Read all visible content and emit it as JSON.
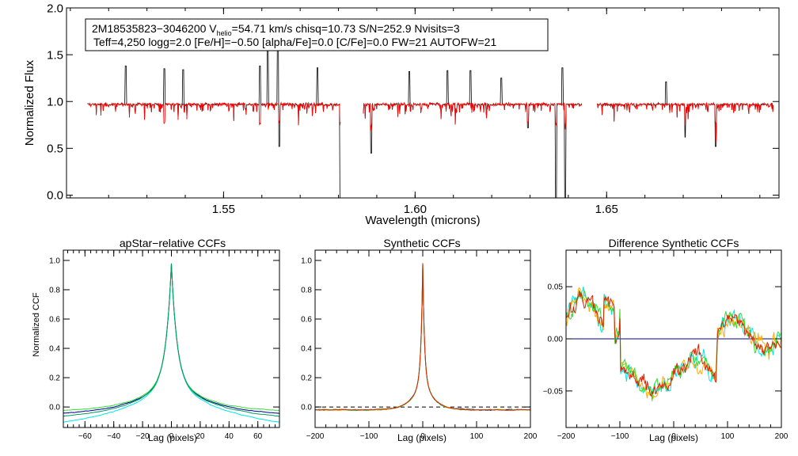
{
  "chart_data": [
    {
      "type": "line",
      "panel": "spectrum",
      "info_line1": "2M18535823−3046200  V",
      "info_sub": "helio",
      "info_line1_rest": "=54.71 km/s  chisq=10.73  S/N=252.9  Nvisits=3",
      "info_line2": "Teff=4,250 logg=2.0 [Fe/H]=−0.50 [alpha/Fe]=0.0 [C/Fe]=0.0 FW=21 AUTOFW=21",
      "xlabel": "Wavelength (microns)",
      "ylabel": "Normalized Flux",
      "xlim": [
        1.509,
        1.695
      ],
      "ylim": [
        -0.03,
        2.0
      ],
      "xticks": [
        {
          "v": 1.55,
          "label": "1.55"
        },
        {
          "v": 1.6,
          "label": "1.60"
        },
        {
          "v": 1.65,
          "label": "1.65"
        }
      ],
      "yticks": [
        {
          "v": 0.0,
          "label": "0.0"
        },
        {
          "v": 0.5,
          "label": "0.5"
        },
        {
          "v": 1.0,
          "label": "1.0"
        },
        {
          "v": 1.5,
          "label": "1.5"
        },
        {
          "v": 2.0,
          "label": "2.0"
        }
      ],
      "chips": [
        [
          1.5145,
          1.5805
        ],
        [
          1.5865,
          1.6435
        ],
        [
          1.6475,
          1.6935
        ]
      ],
      "series": [
        {
          "name": "observed",
          "color": "#000000"
        },
        {
          "name": "model",
          "color": "#ff0000"
        }
      ],
      "spikes": [
        {
          "x": 1.5245,
          "y": 1.38
        },
        {
          "x": 1.5345,
          "y": 1.35
        },
        {
          "x": 1.5395,
          "y": 1.34
        },
        {
          "x": 1.5595,
          "y": 1.38
        },
        {
          "x": 1.5615,
          "y": 1.55
        },
        {
          "x": 1.5642,
          "y": 1.72
        },
        {
          "x": 1.5745,
          "y": 1.36
        },
        {
          "x": 1.5985,
          "y": 1.32
        },
        {
          "x": 1.6085,
          "y": 1.33
        },
        {
          "x": 1.6145,
          "y": 1.33
        },
        {
          "x": 1.6225,
          "y": 1.25
        },
        {
          "x": 1.6385,
          "y": 1.36
        },
        {
          "x": 1.6655,
          "y": 1.21
        }
      ],
      "dips": [
        {
          "x": 1.5805,
          "y": -0.03
        },
        {
          "x": 1.6368,
          "y": -0.03
        },
        {
          "x": 1.6392,
          "y": -0.03
        },
        {
          "x": 1.5885,
          "y": 0.45
        },
        {
          "x": 1.5645,
          "y": 0.52
        },
        {
          "x": 1.5595,
          "y": 0.65
        },
        {
          "x": 1.5345,
          "y": 0.62
        },
        {
          "x": 1.6785,
          "y": 0.52
        },
        {
          "x": 1.6705,
          "y": 0.62
        },
        {
          "x": 1.6295,
          "y": 0.72
        }
      ]
    },
    {
      "type": "line",
      "panel": "ccf1",
      "title": "apStar−relative CCFs",
      "xlabel": "Lag (pixels)",
      "ylabel": "Normalized CCF",
      "xlim": [
        -75,
        75
      ],
      "ylim": [
        -0.14,
        1.07
      ],
      "xticks": [
        {
          "v": -60,
          "label": "−60"
        },
        {
          "v": -40,
          "label": "−40"
        },
        {
          "v": -20,
          "label": "−20"
        },
        {
          "v": 0,
          "label": "0"
        },
        {
          "v": 20,
          "label": "20"
        },
        {
          "v": 40,
          "label": "40"
        },
        {
          "v": 60,
          "label": "60"
        }
      ],
      "yticks": [
        {
          "v": 0.0,
          "label": "0.0"
        },
        {
          "v": 0.2,
          "label": "0.2"
        },
        {
          "v": 0.4,
          "label": "0.4"
        },
        {
          "v": 0.6,
          "label": "0.6"
        },
        {
          "v": 0.8,
          "label": "0.8"
        },
        {
          "v": 1.0,
          "label": "1.0"
        }
      ],
      "peak": 1.0,
      "series": [
        {
          "name": "visit 1",
          "color": "#00008b",
          "offset": -0.03
        },
        {
          "name": "visit 2",
          "color": "#00e5e5",
          "offset": -0.09
        },
        {
          "name": "visit 3",
          "color": "#33dd33",
          "offset": -0.01
        },
        {
          "name": "visit 4",
          "color": "#009966",
          "offset": -0.05
        }
      ]
    },
    {
      "type": "line",
      "panel": "ccf2",
      "title": "Synthetic CCFs",
      "xlabel": "Lag (pixels)",
      "xlim": [
        -200,
        200
      ],
      "ylim": [
        -0.14,
        1.07
      ],
      "xticks": [
        {
          "v": -200,
          "label": "−200"
        },
        {
          "v": -100,
          "label": "−100"
        },
        {
          "v": 0,
          "label": "0"
        },
        {
          "v": 100,
          "label": "100"
        },
        {
          "v": 200,
          "label": "200"
        }
      ],
      "yticks": [
        {
          "v": 0.0,
          "label": "0.0"
        },
        {
          "v": 0.2,
          "label": "0.2"
        },
        {
          "v": 0.4,
          "label": "0.4"
        },
        {
          "v": 0.6,
          "label": "0.6"
        },
        {
          "v": 0.8,
          "label": "0.8"
        },
        {
          "v": 1.0,
          "label": "1.0"
        }
      ],
      "peak": 1.0,
      "baseline": 0.0,
      "series": [
        {
          "name": "visit 1",
          "color": "#00008b"
        },
        {
          "name": "visit 2",
          "color": "#ffaa00"
        },
        {
          "name": "visit 3",
          "color": "#33dd33"
        },
        {
          "name": "visit 4",
          "color": "#dd2200"
        }
      ]
    },
    {
      "type": "line",
      "panel": "diff",
      "title": "Difference Synthetic CCFs",
      "xlabel": "Lag (pixels)",
      "xlim": [
        -200,
        200
      ],
      "ylim": [
        -0.085,
        0.085
      ],
      "xticks": [
        {
          "v": -200,
          "label": "−200"
        },
        {
          "v": -100,
          "label": "−100"
        },
        {
          "v": 0,
          "label": "0"
        },
        {
          "v": 100,
          "label": "100"
        },
        {
          "v": 200,
          "label": "200"
        }
      ],
      "yticks": [
        {
          "v": -0.05,
          "label": "−0.05"
        },
        {
          "v": 0.0,
          "label": "0.00"
        },
        {
          "v": 0.05,
          "label": "0.05"
        }
      ],
      "zero_line_color": "#00008b",
      "series": [
        {
          "name": "diff 1",
          "color": "#00e5e5"
        },
        {
          "name": "diff 2",
          "color": "#ffaa00"
        },
        {
          "name": "diff 3",
          "color": "#33dd33"
        },
        {
          "name": "diff 4",
          "color": "#dd2200"
        }
      ]
    }
  ]
}
